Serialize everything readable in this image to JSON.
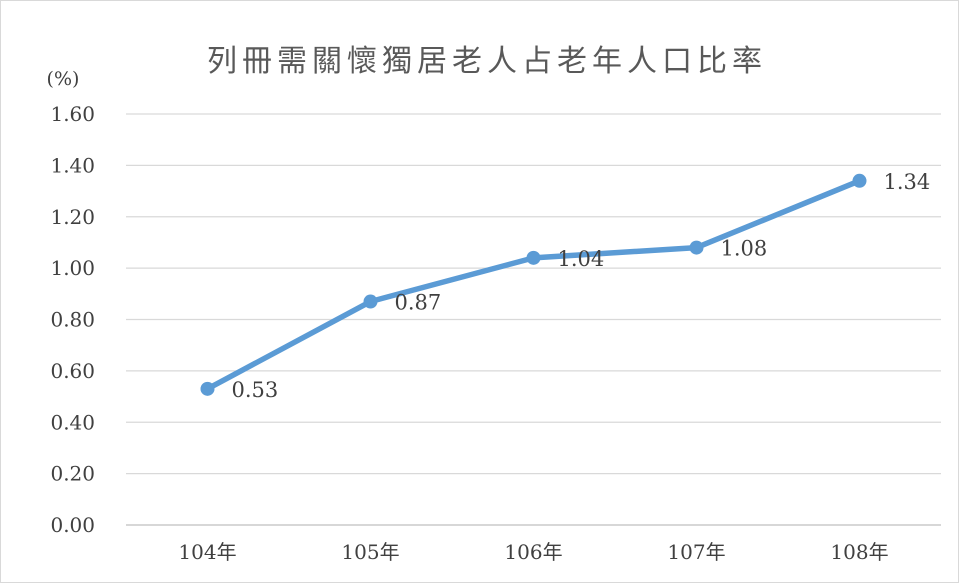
{
  "chart_data": {
    "type": "line",
    "title": "列冊需關懷獨居老人占老年人口比率",
    "ylabel": "(%)",
    "xlabel": "",
    "categories": [
      "104年",
      "105年",
      "106年",
      "107年",
      "108年"
    ],
    "series": [
      {
        "values": [
          0.53,
          0.87,
          1.04,
          1.08,
          1.34
        ]
      }
    ],
    "data_labels": [
      "0.53",
      "0.87",
      "1.04",
      "1.08",
      "1.34"
    ],
    "yticks": [
      "0.00",
      "0.20",
      "0.40",
      "0.60",
      "0.80",
      "1.00",
      "1.20",
      "1.40",
      "1.60"
    ],
    "ylim": [
      0,
      1.6
    ],
    "grid": true,
    "legend": "none",
    "colors": {
      "line": "#5b9bd5",
      "grid": "#d9d9d9",
      "text": "#404040"
    }
  }
}
